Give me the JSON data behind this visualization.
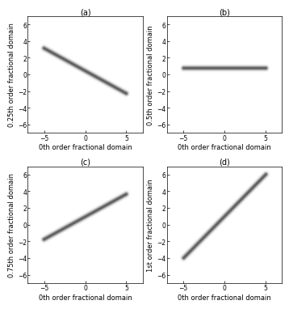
{
  "subplot_labels": [
    "(a)",
    "(b)",
    "(c)",
    "(d)"
  ],
  "ylabels": [
    "0.25th order fractional domain",
    "0.5th order fractional domain",
    "0.75th order fractional domain",
    "1st order fractional domain"
  ],
  "xlabel": "0th order fractional domain",
  "orders_a2": [
    0.25,
    0.5,
    0.75,
    1.0
  ],
  "xlim": [
    -7,
    7
  ],
  "ylim": [
    -7,
    7
  ],
  "xticks": [
    -5,
    0,
    5
  ],
  "yticks": [
    -6,
    -4,
    -2,
    0,
    2,
    4,
    6
  ],
  "t_min": -5,
  "t_max": 5,
  "ridge_sigma": 0.18,
  "ridge_intensity": 0.65,
  "background_color": "#ffffff",
  "fontsize_label": 6,
  "fontsize_tick": 5.5,
  "fontsize_sublabel": 7,
  "fig_width": 3.5,
  "fig_height": 3.74,
  "dpi": 100
}
